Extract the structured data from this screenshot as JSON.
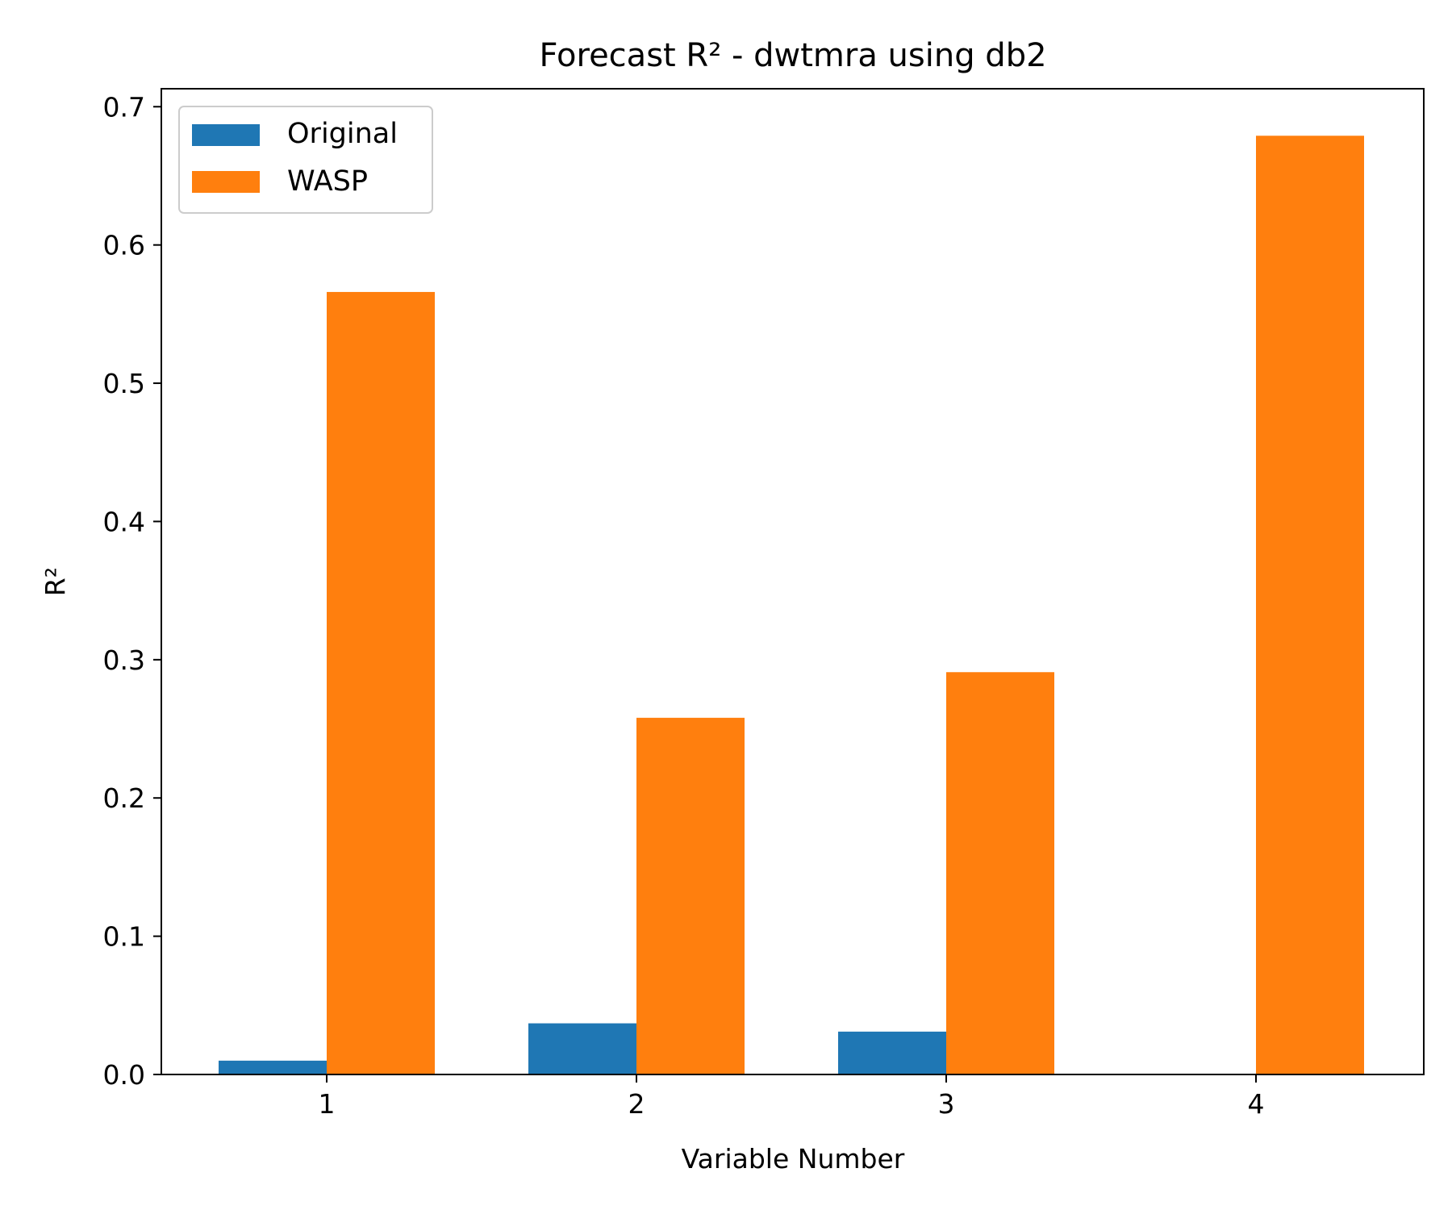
{
  "chart_data": {
    "type": "bar",
    "title": "Forecast R² - dwtmra using db2",
    "xlabel": "Variable Number",
    "ylabel": "R²",
    "categories": [
      "1",
      "2",
      "3",
      "4"
    ],
    "series": [
      {
        "name": "Original",
        "color": "#1f77b4",
        "values": [
          0.01,
          0.037,
          0.031,
          0.0
        ]
      },
      {
        "name": "WASP",
        "color": "#ff7f0e",
        "values": [
          0.566,
          0.258,
          0.291,
          0.679
        ]
      }
    ],
    "ylim": [
      0,
      0.713
    ],
    "yticks": [
      "0.0",
      "0.1",
      "0.2",
      "0.3",
      "0.4",
      "0.5",
      "0.6",
      "0.7"
    ],
    "grid": false,
    "legend_position": "top-left"
  }
}
